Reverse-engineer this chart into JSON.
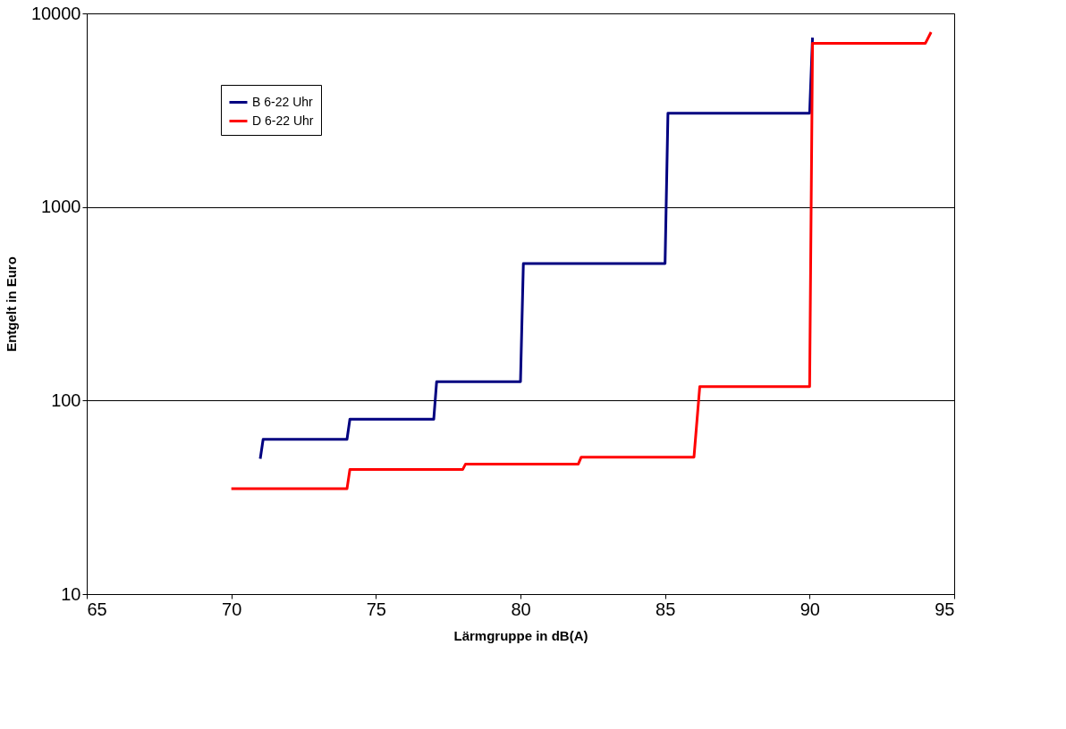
{
  "chart_data": {
    "type": "line",
    "xlabel": "Lärmgruppe in dB(A)",
    "ylabel": "Entgelt in Euro",
    "log": "y",
    "xlim": [
      65,
      95
    ],
    "xticks": [
      65,
      70,
      75,
      80,
      85,
      90,
      95
    ],
    "ylim": [
      10,
      10000
    ],
    "yticks": [
      10,
      100,
      1000,
      10000
    ],
    "grid": "y",
    "legend": "top left",
    "marker": "none",
    "line_style": "solid",
    "series": [
      {
        "name": "B 6-22 Uhr",
        "color": "#000080",
        "x": [
          71,
          71.1,
          74,
          74.1,
          77,
          77.1,
          80,
          80.1,
          85,
          85.1,
          90,
          90.1
        ],
        "values": [
          50,
          63,
          63,
          80,
          80,
          125,
          125,
          510,
          510,
          3050,
          3050,
          7500
        ]
      },
      {
        "name": "D 6-22 Uhr",
        "color": "#ff0000",
        "x": [
          70,
          74,
          74.1,
          78,
          78.1,
          82,
          82.1,
          86,
          86.2,
          90,
          90.1,
          94,
          94.2
        ],
        "values": [
          35,
          35,
          44,
          44,
          47,
          47,
          51,
          51,
          118,
          118,
          7000,
          7000,
          8000
        ]
      }
    ]
  }
}
